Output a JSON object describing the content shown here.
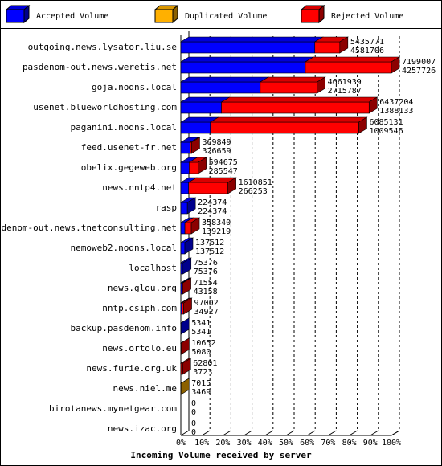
{
  "chart_data": {
    "type": "bar3d",
    "title": "Incoming Volume received by server",
    "categories": [
      "outgoing.news.lysator.liu.se",
      "pasdenom-out.news.weretis.net",
      "goja.nodns.local",
      "usenet.blueworldhosting.com",
      "paganini.nodns.local",
      "feed.usenet-fr.net",
      "obelix.gegeweb.org",
      "news.nntp4.net",
      "rasp",
      "pasdenom-out.news.tnetconsulting.net",
      "nemoweb2.nodns.local",
      "localhost",
      "news.glou.org",
      "nntp.csiph.com",
      "backup.pasdenom.info",
      "news.ortolo.eu",
      "news.furie.org.uk",
      "news.niel.me",
      "birotanews.mynetgear.com",
      "news.izac.org"
    ],
    "totals": [
      5435771,
      7199007,
      4661939,
      6437204,
      6085131,
      369849,
      594675,
      1610851,
      224374,
      358340,
      137612,
      75376,
      71554,
      97002,
      5341,
      10652,
      62801,
      7015,
      0,
      0
    ],
    "series": [
      {
        "name": "Accepted Volume",
        "color": "#0000ff",
        "values": [
          4581706,
          4257726,
          2715787,
          1388133,
          1009546,
          326659,
          285547,
          266253,
          224374,
          139219,
          137612,
          75376,
          43158,
          34927,
          5341,
          5080,
          3723,
          3469,
          0,
          0
        ]
      },
      {
        "name": "Duplicated Volume",
        "color": "#ffb000",
        "values": [
          0,
          0,
          0,
          0,
          0,
          0,
          0,
          0,
          0,
          0,
          0,
          0,
          0,
          0,
          0,
          0,
          0,
          3546,
          0,
          0
        ]
      },
      {
        "name": "Rejected Volume",
        "color": "#ff0000",
        "values": [
          854065,
          2941281,
          1946152,
          5049071,
          5075585,
          43190,
          309128,
          1344598,
          0,
          219121,
          0,
          0,
          28396,
          62075,
          0,
          5572,
          59078,
          0,
          0,
          0
        ]
      }
    ],
    "xlim": [
      0,
      7199007
    ],
    "xticks": [
      {
        "value": 0,
        "label": "0%"
      },
      {
        "value": 719900.7,
        "label": "10%"
      },
      {
        "value": 1439801.4,
        "label": "20%"
      },
      {
        "value": 2159702.1,
        "label": "30%"
      },
      {
        "value": 2879602.8,
        "label": "40%"
      },
      {
        "value": 3599503.5,
        "label": "50%"
      },
      {
        "value": 4319404.2,
        "label": "60%"
      },
      {
        "value": 5039304.9,
        "label": "70%"
      },
      {
        "value": 5759205.6,
        "label": "80%"
      },
      {
        "value": 6479106.3,
        "label": "90%"
      },
      {
        "value": 7199007,
        "label": "100%"
      }
    ],
    "grid": true
  }
}
